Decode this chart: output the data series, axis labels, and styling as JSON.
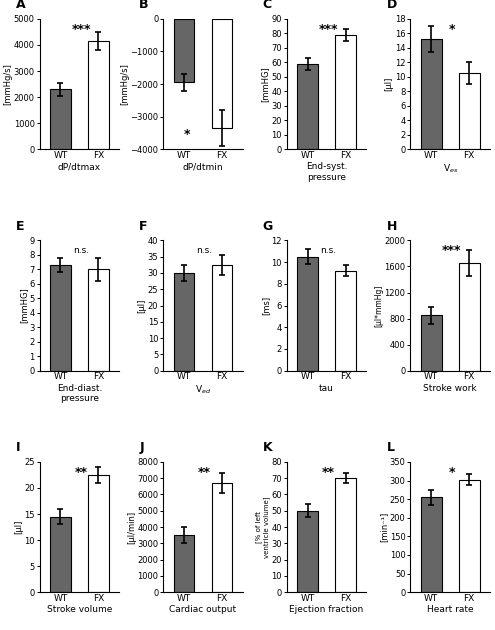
{
  "panels": [
    {
      "label": "A",
      "title": "dP/dtmax",
      "ylabel": "[mmHg/s]",
      "wt_val": 2300,
      "wt_err": 250,
      "fx_val": 4150,
      "fx_err": 350,
      "ylim": [
        0,
        5000
      ],
      "yticks": [
        0,
        1000,
        2000,
        3000,
        4000,
        5000
      ],
      "sig": "***",
      "sig_pos": "top"
    },
    {
      "label": "B",
      "title": "dP/dtmin",
      "ylabel": "[mmHg/s]",
      "wt_val": -1950,
      "wt_err": 250,
      "fx_val": -3350,
      "fx_err": 550,
      "ylim": [
        -4000,
        0
      ],
      "yticks": [
        -4000,
        -3000,
        -2000,
        -1000,
        0
      ],
      "sig": "*",
      "sig_pos": "bottom"
    },
    {
      "label": "C",
      "title": "End-syst.\npressure",
      "ylabel": "[mmHG]",
      "wt_val": 59,
      "wt_err": 4,
      "fx_val": 79,
      "fx_err": 4,
      "ylim": [
        0,
        90
      ],
      "yticks": [
        0,
        10,
        20,
        30,
        40,
        50,
        60,
        70,
        80,
        90
      ],
      "sig": "***",
      "sig_pos": "top"
    },
    {
      "label": "D",
      "title": "V$_{es}$",
      "ylabel": "[µl]",
      "wt_val": 15.2,
      "wt_err": 1.8,
      "fx_val": 10.5,
      "fx_err": 1.5,
      "ylim": [
        0,
        18
      ],
      "yticks": [
        0,
        2,
        4,
        6,
        8,
        10,
        12,
        14,
        16,
        18
      ],
      "sig": "*",
      "sig_pos": "top"
    },
    {
      "label": "E",
      "title": "End-diast.\npressure",
      "ylabel": "[mmHG]",
      "wt_val": 7.3,
      "wt_err": 0.5,
      "fx_val": 7.0,
      "fx_err": 0.8,
      "ylim": [
        0,
        9
      ],
      "yticks": [
        0,
        1,
        2,
        3,
        4,
        5,
        6,
        7,
        8,
        9
      ],
      "sig": "n.s.",
      "sig_pos": "top"
    },
    {
      "label": "F",
      "title": "V$_{ed}$",
      "ylabel": "[µl]",
      "wt_val": 30.0,
      "wt_err": 2.5,
      "fx_val": 32.5,
      "fx_err": 3.0,
      "ylim": [
        0,
        40
      ],
      "yticks": [
        0,
        5,
        10,
        15,
        20,
        25,
        30,
        35,
        40
      ],
      "sig": "n.s.",
      "sig_pos": "top"
    },
    {
      "label": "G",
      "title": "tau",
      "ylabel": "[ms]",
      "wt_val": 10.5,
      "wt_err": 0.7,
      "fx_val": 9.2,
      "fx_err": 0.5,
      "ylim": [
        0,
        12
      ],
      "yticks": [
        0,
        2,
        4,
        6,
        8,
        10,
        12
      ],
      "sig": "n.s.",
      "sig_pos": "top"
    },
    {
      "label": "H",
      "title": "Stroke work",
      "ylabel": "[µl*mmHg]",
      "wt_val": 850,
      "wt_err": 130,
      "fx_val": 1650,
      "fx_err": 200,
      "ylim": [
        0,
        2000
      ],
      "yticks": [
        0,
        400,
        800,
        1200,
        1600,
        2000
      ],
      "sig": "***",
      "sig_pos": "top"
    },
    {
      "label": "I",
      "title": "Stroke volume",
      "ylabel": "[µl]",
      "wt_val": 14.5,
      "wt_err": 1.5,
      "fx_val": 22.5,
      "fx_err": 1.5,
      "ylim": [
        0,
        25
      ],
      "yticks": [
        0,
        5,
        10,
        15,
        20,
        25
      ],
      "sig": "**",
      "sig_pos": "top"
    },
    {
      "label": "J",
      "title": "Cardiac output",
      "ylabel": "[µl/min]",
      "wt_val": 3500,
      "wt_err": 500,
      "fx_val": 6700,
      "fx_err": 600,
      "ylim": [
        0,
        8000
      ],
      "yticks": [
        0,
        1000,
        2000,
        3000,
        4000,
        5000,
        6000,
        7000,
        8000
      ],
      "sig": "**",
      "sig_pos": "top"
    },
    {
      "label": "K",
      "title": "Ejection fraction",
      "ylabel": "[% of left\nventricle volume]",
      "wt_val": 50,
      "wt_err": 4,
      "fx_val": 70,
      "fx_err": 3,
      "ylim": [
        0,
        80
      ],
      "yticks": [
        0,
        10,
        20,
        30,
        40,
        50,
        60,
        70,
        80
      ],
      "sig": "**",
      "sig_pos": "top"
    },
    {
      "label": "L",
      "title": "Heart rate",
      "ylabel": "[min⁻¹]",
      "wt_val": 255,
      "wt_err": 20,
      "fx_val": 302,
      "fx_err": 15,
      "ylim": [
        0,
        350
      ],
      "yticks": [
        0,
        50,
        100,
        150,
        200,
        250,
        300,
        350
      ],
      "sig": "*",
      "sig_pos": "top"
    }
  ],
  "wt_color": "#666666",
  "fx_color": "#ffffff",
  "bar_edgecolor": "#000000",
  "bar_width": 0.55,
  "errorbar_color": "#000000",
  "errorbar_capsize": 2,
  "errorbar_lw": 1.2
}
